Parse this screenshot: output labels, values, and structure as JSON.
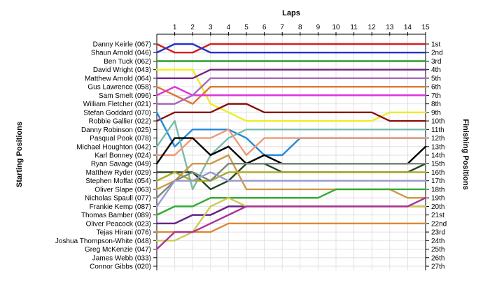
{
  "chart_data": {
    "type": "line",
    "title": "Laps",
    "ylabel_left": "Starting Positions",
    "ylabel_right": "Finishing Positions",
    "x": [
      0,
      1,
      2,
      3,
      4,
      5,
      6,
      7,
      8,
      9,
      10,
      11,
      12,
      13,
      14,
      15
    ],
    "x_tick_labels": [
      "1",
      "2",
      "3",
      "4",
      "5",
      "6",
      "7",
      "8",
      "9",
      "10",
      "11",
      "12",
      "13",
      "14",
      "15"
    ],
    "starting_labels": [
      "Danny Keirle (067)",
      "Shaun Arnold (046)",
      "Ben Tuck (062)",
      "David Wright (043)",
      "Matthew Arnold (064)",
      "Gus Lawrence (058)",
      "Sam Smelt (096)",
      "William Fletcher (021)",
      "Stefan Goddard (070)",
      "Robbie Gallier (022)",
      "Danny Robinson (025)",
      "Pasqual Pook (078)",
      "Michael Houghton (042)",
      "Karl Bonney (024)",
      "Ryan Savage (049)",
      "Matthew Ryder (029)",
      "Stephen Moffat (054)",
      "Oliver Slape (063)",
      "Nicholas Spaull (077)",
      "Frankie Kemp (087)",
      "Thomas Bamber (089)",
      "Oliver Peacock (023)",
      "Tejas Hirani (076)",
      "Joshua Thompson-White (048)",
      "Greg McKenzie (047)",
      "James Webb (033)",
      "Connor Gibbs (020)"
    ],
    "finishing_labels": [
      "1st",
      "2nd",
      "3rd",
      "4th",
      "5th",
      "6th",
      "7th",
      "8th",
      "9th",
      "10th",
      "11th",
      "12th",
      "13th",
      "14th",
      "15th",
      "16th",
      "17th",
      "18th",
      "19th",
      "20th",
      "21st",
      "22nd",
      "23rd",
      "24th",
      "25th",
      "26th",
      "27th"
    ],
    "ylim": [
      1,
      27
    ],
    "grid": true,
    "series": [
      {
        "color": "#cc2222",
        "values": [
          1,
          2,
          2,
          1,
          1,
          1,
          1,
          1,
          1,
          1,
          1,
          1,
          1,
          1,
          1,
          1
        ]
      },
      {
        "color": "#2233cc",
        "values": [
          2,
          1,
          1,
          2,
          2,
          2,
          2,
          2,
          2,
          2,
          2,
          2,
          2,
          2,
          2,
          2
        ]
      },
      {
        "color": "#229922",
        "values": [
          3,
          3,
          3,
          3,
          3,
          3,
          3,
          3,
          3,
          3,
          3,
          3,
          3,
          3,
          3,
          3
        ]
      },
      {
        "color": "#eeee22",
        "values": [
          4,
          4,
          4,
          8,
          9,
          10,
          10,
          10,
          10,
          10,
          10,
          10,
          10,
          9,
          9,
          9
        ]
      },
      {
        "color": "#772288",
        "values": [
          5,
          5,
          5,
          4,
          4,
          4,
          4,
          4,
          4,
          4,
          4,
          4,
          4,
          4,
          4,
          4
        ]
      },
      {
        "color": "#dd7733",
        "values": [
          6,
          7,
          8,
          6,
          6,
          6,
          6,
          6,
          6,
          6,
          6,
          6,
          6,
          6,
          6,
          6
        ]
      },
      {
        "color": "#dd33dd",
        "values": [
          7,
          6,
          7,
          7,
          7,
          7,
          7,
          7,
          7,
          7,
          7,
          7,
          7,
          7,
          7,
          7
        ]
      },
      {
        "color": "#aa66bb",
        "values": [
          8,
          8,
          7,
          5,
          5,
          5,
          5,
          5,
          5,
          5,
          5,
          5,
          5,
          5,
          5,
          5
        ]
      },
      {
        "color": "#8b1010",
        "values": [
          10,
          9,
          9,
          9,
          8,
          8,
          9,
          9,
          9,
          9,
          9,
          9,
          9,
          10,
          10,
          10
        ]
      },
      {
        "color": "#2288dd",
        "values": [
          9,
          13,
          11,
          11,
          11,
          12,
          14,
          14,
          12,
          12,
          12,
          12,
          12,
          12,
          12,
          12
        ]
      },
      {
        "color": "#77bbaa",
        "values": [
          13,
          10,
          18,
          14,
          12,
          11,
          11,
          11,
          11,
          11,
          11,
          11,
          11,
          11,
          11,
          11
        ]
      },
      {
        "color": "#ee9977",
        "values": [
          14,
          14,
          12,
          12,
          11,
          14,
          12,
          12,
          12,
          12,
          12,
          12,
          12,
          12,
          12,
          12
        ]
      },
      {
        "color": "#000000",
        "values": [
          15,
          12,
          12,
          14,
          13,
          15,
          14,
          15,
          15,
          15,
          15,
          15,
          15,
          15,
          15,
          13
        ]
      },
      {
        "color": "#224422",
        "values": [
          16,
          16,
          16,
          18,
          17,
          15,
          15,
          16,
          16,
          16,
          16,
          16,
          16,
          16,
          16,
          15
        ]
      },
      {
        "color": "#aaaa22",
        "values": [
          17,
          16,
          17,
          17,
          16,
          16,
          16,
          16,
          16,
          16,
          16,
          16,
          16,
          16,
          16,
          16
        ]
      },
      {
        "color": "#cc9944",
        "values": [
          18,
          17,
          15,
          15,
          14,
          18,
          18,
          18,
          18,
          18,
          18,
          18,
          18,
          18,
          19,
          19
        ]
      },
      {
        "color": "#778877",
        "values": [
          19,
          17,
          16,
          17,
          15,
          15,
          15,
          15,
          15,
          15,
          15,
          15,
          15,
          15,
          15,
          15
        ]
      },
      {
        "color": "#9999cc",
        "values": [
          20,
          17,
          17,
          16,
          17,
          17,
          17,
          17,
          17,
          17,
          17,
          17,
          17,
          17,
          17,
          17
        ]
      },
      {
        "color": "#33aa33",
        "values": [
          21,
          20,
          20,
          19,
          19,
          19,
          19,
          19,
          19,
          19,
          18,
          18,
          18,
          18,
          18,
          18
        ]
      },
      {
        "color": "#662288",
        "values": [
          22,
          22,
          21,
          21,
          20,
          20,
          20,
          20,
          20,
          20,
          20,
          20,
          20,
          20,
          20,
          20
        ]
      },
      {
        "color": "#dd8833",
        "values": [
          23,
          23,
          23,
          23,
          22,
          22,
          22,
          22,
          22,
          22,
          22,
          22,
          22,
          22,
          22,
          22
        ]
      },
      {
        "color": "#cccc55",
        "values": [
          24,
          24,
          23,
          20,
          19,
          20,
          20,
          20,
          20,
          20,
          20,
          20,
          20,
          20,
          20,
          20
        ]
      },
      {
        "color": "#aa3399",
        "values": [
          25,
          23,
          23,
          22,
          21,
          20,
          20,
          20,
          20,
          20,
          20,
          20,
          20,
          20,
          20,
          19
        ]
      }
    ]
  }
}
